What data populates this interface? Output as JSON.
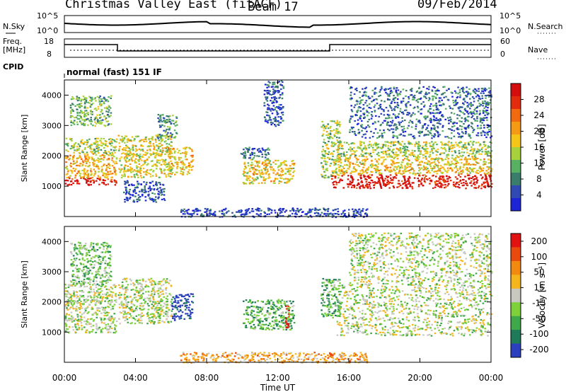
{
  "header": {
    "station": "Christmas Valley East (fitACF)",
    "beam": "Beam 17",
    "date": "09/Feb/2014"
  },
  "status_panel": {
    "nsky_label": "N.Sky",
    "nsky_ticks": [
      "10^5",
      "10^0"
    ],
    "nsearch_label": "N.Search",
    "nsearch_ticks": [
      "10^5",
      "10^0"
    ],
    "freq_label": "Freq.",
    "freq_unit": "[MHz]",
    "freq_ticks": [
      "18",
      "8"
    ],
    "nave_label": "Nave",
    "nave_ticks": [
      "60",
      "0"
    ],
    "cpid_label": "CPID",
    "cpid_value": "normal (fast) 151 IF"
  },
  "chart_data": [
    {
      "type": "heatmap",
      "name": "Power",
      "ylabel": "Slant Range [km]",
      "ylim": [
        0,
        4500
      ],
      "yticks": [
        "1000",
        "2000",
        "3000",
        "4000"
      ],
      "xlim": [
        0,
        24
      ],
      "colorbar_label": "Power [dB]",
      "colorbar_ticks": [
        "4",
        "8",
        "12",
        "16",
        "20",
        "24",
        "28"
      ],
      "colorbar_colors": [
        "#1d24d6",
        "#2f4bb3",
        "#3a7d6a",
        "#58b062",
        "#a8d23c",
        "#f5c518",
        "#f59a14",
        "#f26a10",
        "#e32b0e",
        "#d40d0d"
      ],
      "regions": [
        {
          "t0": 0.0,
          "t1": 2.9,
          "r0": 1050,
          "r1": 1300,
          "level": 0.95
        },
        {
          "t0": 0.0,
          "t1": 2.9,
          "r0": 1300,
          "r1": 2100,
          "level": 0.6
        },
        {
          "t0": 0.0,
          "t1": 2.9,
          "r0": 2100,
          "r1": 2600,
          "level": 0.45
        },
        {
          "t0": 0.3,
          "t1": 2.6,
          "r0": 3000,
          "r1": 4000,
          "level": 0.35
        },
        {
          "t0": 3.0,
          "t1": 6.0,
          "r0": 1300,
          "r1": 2700,
          "level": 0.5
        },
        {
          "t0": 5.2,
          "t1": 6.3,
          "r0": 2600,
          "r1": 3400,
          "level": 0.3
        },
        {
          "t0": 5.8,
          "t1": 7.2,
          "r0": 1400,
          "r1": 2300,
          "level": 0.55
        },
        {
          "t0": 3.3,
          "t1": 5.6,
          "r0": 500,
          "r1": 1200,
          "level": 0.15
        },
        {
          "t0": 10.0,
          "t1": 12.9,
          "r0": 1100,
          "r1": 1900,
          "level": 0.55
        },
        {
          "t0": 9.8,
          "t1": 11.5,
          "r0": 1900,
          "r1": 2300,
          "level": 0.2
        },
        {
          "t0": 11.2,
          "t1": 12.3,
          "r0": 3000,
          "r1": 4500,
          "level": 0.15
        },
        {
          "t0": 14.4,
          "t1": 15.5,
          "r0": 1300,
          "r1": 3200,
          "level": 0.45
        },
        {
          "t0": 15.0,
          "t1": 24.0,
          "r0": 950,
          "r1": 1400,
          "level": 0.95
        },
        {
          "t0": 15.3,
          "t1": 24.0,
          "r0": 1400,
          "r1": 2000,
          "level": 0.55
        },
        {
          "t0": 15.3,
          "t1": 24.0,
          "r0": 2000,
          "r1": 2500,
          "level": 0.45
        },
        {
          "t0": 16.0,
          "t1": 24.0,
          "r0": 2600,
          "r1": 4300,
          "level": 0.2
        },
        {
          "t0": 6.5,
          "t1": 17.0,
          "r0": 0,
          "r1": 300,
          "level": 0.12
        }
      ]
    },
    {
      "type": "heatmap",
      "name": "Velocity",
      "ylabel": "Slant Range [km]",
      "ylim": [
        0,
        4500
      ],
      "yticks": [
        "1000",
        "2000",
        "3000",
        "4000"
      ],
      "xlim": [
        0,
        24
      ],
      "xticks": [
        "00:00",
        "04:00",
        "08:00",
        "12:00",
        "16:00",
        "20:00",
        "00:00"
      ],
      "xlabel": "Time UT",
      "colorbar_label": "Velocity [m s⁻¹]",
      "colorbar_ticks": [
        "200",
        "100",
        "50",
        "15",
        "-15",
        "-50",
        "-100",
        "-200"
      ],
      "colorbar_colors": [
        "#2c3fbf",
        "#1f7a5a",
        "#3fa84a",
        "#7fd13c",
        "#c8c8c0",
        "#f5b51c",
        "#f28a10",
        "#ea4a0e",
        "#e31212"
      ],
      "regions": [
        {
          "t0": 0.0,
          "t1": 2.9,
          "r0": 1000,
          "r1": 2600,
          "level": 0.45
        },
        {
          "t0": 0.3,
          "t1": 2.6,
          "r0": 2600,
          "r1": 4000,
          "level": 0.35
        },
        {
          "t0": 3.0,
          "t1": 6.0,
          "r0": 1300,
          "r1": 2800,
          "level": 0.45
        },
        {
          "t0": 6.0,
          "t1": 7.2,
          "r0": 1400,
          "r1": 2300,
          "level": 0.0
        },
        {
          "t0": 10.0,
          "t1": 12.9,
          "r0": 1100,
          "r1": 2100,
          "level": 0.3
        },
        {
          "t0": 12.4,
          "t1": 12.6,
          "r0": 1100,
          "r1": 2000,
          "level": 0.95
        },
        {
          "t0": 14.4,
          "t1": 15.5,
          "r0": 1500,
          "r1": 2800,
          "level": 0.3
        },
        {
          "t0": 15.3,
          "t1": 24.0,
          "r0": 900,
          "r1": 2600,
          "level": 0.45
        },
        {
          "t0": 16.0,
          "t1": 24.0,
          "r0": 2600,
          "r1": 4300,
          "level": 0.45
        },
        {
          "t0": 6.5,
          "t1": 17.0,
          "r0": 0,
          "r1": 350,
          "level": 0.65
        }
      ]
    }
  ]
}
